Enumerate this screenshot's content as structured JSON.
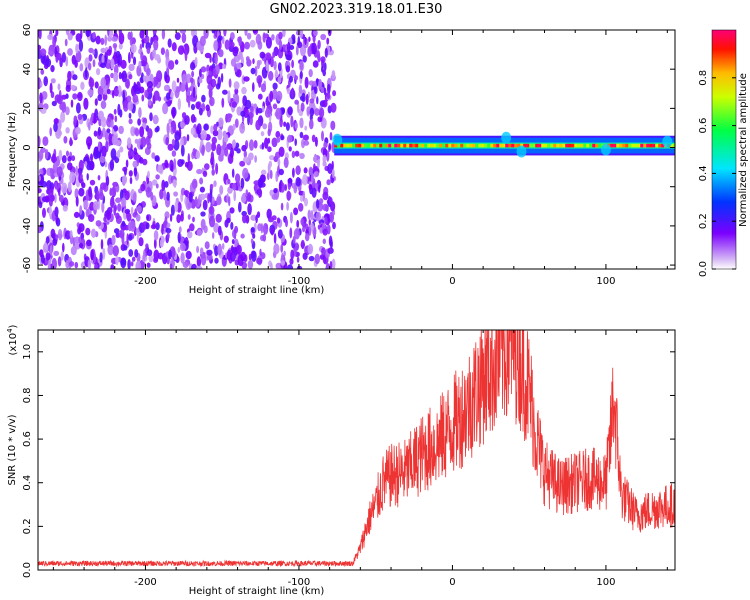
{
  "title": "GN02.2023.319.18.01.E30",
  "colorbar": {
    "label": "Normalized spectral amplitude",
    "ticks": [
      "0.0",
      "0.2",
      "0.4",
      "0.6",
      "0.8"
    ],
    "tick_values": [
      0.0,
      0.2,
      0.4,
      0.6,
      0.8
    ],
    "range": [
      0,
      1
    ],
    "colormap": "hsv-rainbow (white-violet-blue-cyan-green-yellow-red-magenta)"
  },
  "chart_data": [
    {
      "type": "heatmap",
      "title": "GN02.2023.319.18.01.E30",
      "xlabel": "Height of straight line (km)",
      "ylabel": "Frequency (Hz)",
      "xlim": [
        -270,
        145
      ],
      "ylim": [
        -62,
        60
      ],
      "x_ticks": [
        -200,
        -100,
        0,
        100
      ],
      "x_tick_labels": [
        "-200",
        "-100",
        "0",
        "100"
      ],
      "y_ticks": [
        -60,
        -40,
        -20,
        0,
        20,
        40,
        60
      ],
      "y_tick_labels": [
        "-60",
        "-40",
        "-20",
        "0",
        "20",
        "40",
        "60"
      ],
      "regions": [
        {
          "x_range": [
            -270,
            -77
          ],
          "y_range": [
            -62,
            60
          ],
          "description": "broadband noise, amplitude ~0.1-0.25 (violet speckle)"
        },
        {
          "x_range": [
            -77,
            145
          ],
          "y_range": [
            -3,
            5
          ],
          "description": "narrow signal band centred near 0-2 Hz, amplitude up to ~1.0"
        }
      ]
    },
    {
      "type": "line",
      "xlabel": "Height of straight line (km)",
      "ylabel": "SNR (10 * v/v)",
      "y_scale_label": "(x10",
      "y_scale_exp": "4",
      "y_scale_close": ")",
      "xlim": [
        -270,
        145
      ],
      "ylim": [
        0,
        1.1
      ],
      "x_ticks": [
        -200,
        -100,
        0,
        100
      ],
      "x_tick_labels": [
        "-200",
        "-100",
        "0",
        "100"
      ],
      "y_ticks": [
        0,
        0.2,
        0.4,
        0.6,
        0.8,
        1.0
      ],
      "y_tick_labels": [
        "0.0",
        "0.2",
        "0.4",
        "0.6",
        "0.8",
        "1.0"
      ],
      "color": "#ee3333",
      "series": [
        {
          "x": [
            -270,
            -200,
            -100,
            -65,
            -60,
            -55,
            -50,
            -45,
            -40,
            -30,
            -20,
            -10,
            0,
            10,
            20,
            30,
            35,
            38,
            42,
            45,
            50,
            55,
            60,
            70,
            80,
            90,
            100,
            103,
            105,
            110,
            120,
            130,
            145
          ],
          "y": [
            0.03,
            0.03,
            0.03,
            0.03,
            0.1,
            0.22,
            0.3,
            0.4,
            0.43,
            0.45,
            0.53,
            0.58,
            0.66,
            0.75,
            0.88,
            0.98,
            1.02,
            1.05,
            1.02,
            0.96,
            0.82,
            0.6,
            0.45,
            0.38,
            0.4,
            0.42,
            0.4,
            0.6,
            0.8,
            0.35,
            0.25,
            0.28,
            0.3
          ]
        }
      ]
    }
  ]
}
